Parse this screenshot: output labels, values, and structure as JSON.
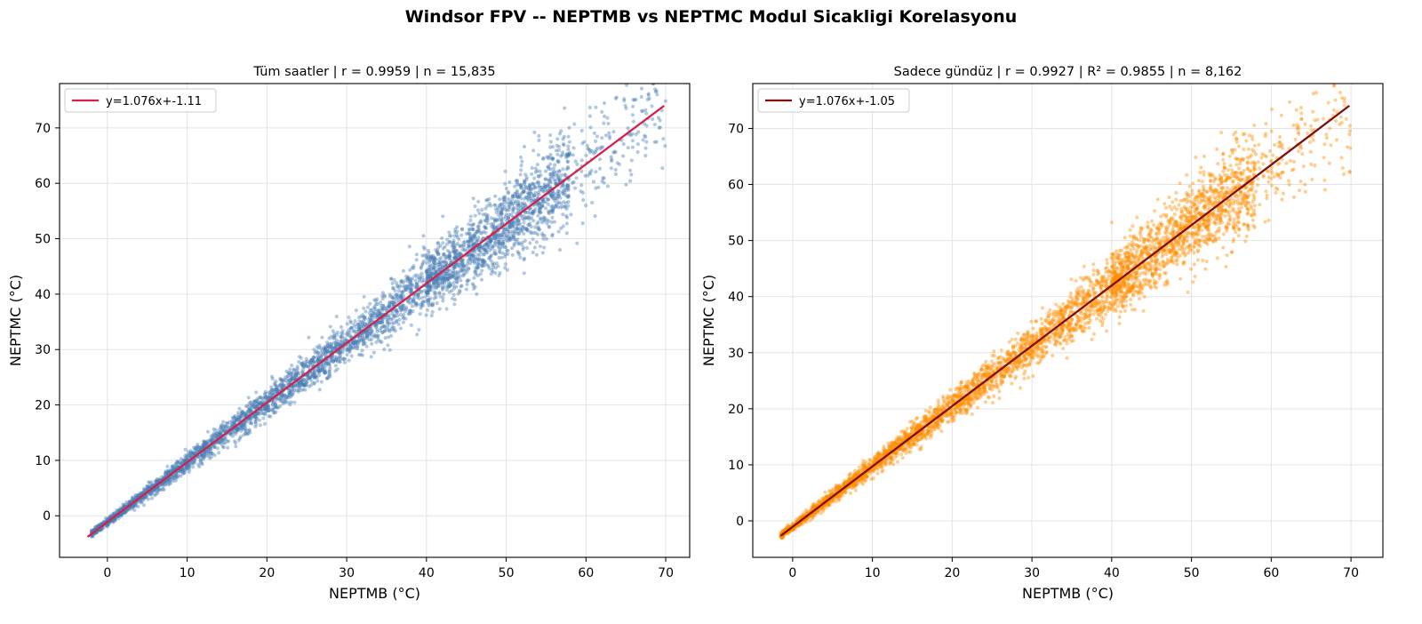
{
  "figure": {
    "title": "Windsor FPV -- NEPTMB vs NEPTMC Modul Sicakligi Korelasyonu"
  },
  "chart_data": [
    {
      "type": "scatter",
      "title": "Tüm saatler  |  r = 0.9959  |  n = 15,835",
      "xlabel": "NEPTMB (°C)",
      "ylabel": "NEPTMC (°C)",
      "xlim": [
        -6,
        73
      ],
      "ylim": [
        -7.5,
        78
      ],
      "xticks": [
        0,
        10,
        20,
        30,
        40,
        50,
        60,
        70
      ],
      "yticks": [
        0,
        10,
        20,
        30,
        40,
        50,
        60,
        70
      ],
      "grid": true,
      "legend_position": "upper-left",
      "scatter_color": "#4a7fb5",
      "x_range": [
        -2,
        70
      ],
      "n": 15835,
      "fit": {
        "slope": 1.076,
        "intercept": -1.11,
        "x_start": -2.5,
        "x_end": 69.8,
        "color": "#d6214b",
        "label": "y=1.076x+-1.11"
      },
      "seed": 11
    },
    {
      "type": "scatter",
      "title": "Sadece gündüz  |  r = 0.9927  |  R² = 0.9855  |  n = 8,162",
      "xlabel": "NEPTMB (°C)",
      "ylabel": "NEPTMC (°C)",
      "xlim": [
        -5,
        74
      ],
      "ylim": [
        -6.5,
        78
      ],
      "xticks": [
        0,
        10,
        20,
        30,
        40,
        50,
        60,
        70
      ],
      "yticks": [
        0,
        10,
        20,
        30,
        40,
        50,
        60,
        70
      ],
      "grid": true,
      "legend_position": "upper-left",
      "scatter_color": "#ff8c00",
      "x_range": [
        -1.5,
        70
      ],
      "n": 8162,
      "fit": {
        "slope": 1.076,
        "intercept": -1.05,
        "x_start": -1.5,
        "x_end": 69.8,
        "color": "#7d0f0f",
        "label": "y=1.076x+-1.05"
      },
      "seed": 29
    }
  ]
}
